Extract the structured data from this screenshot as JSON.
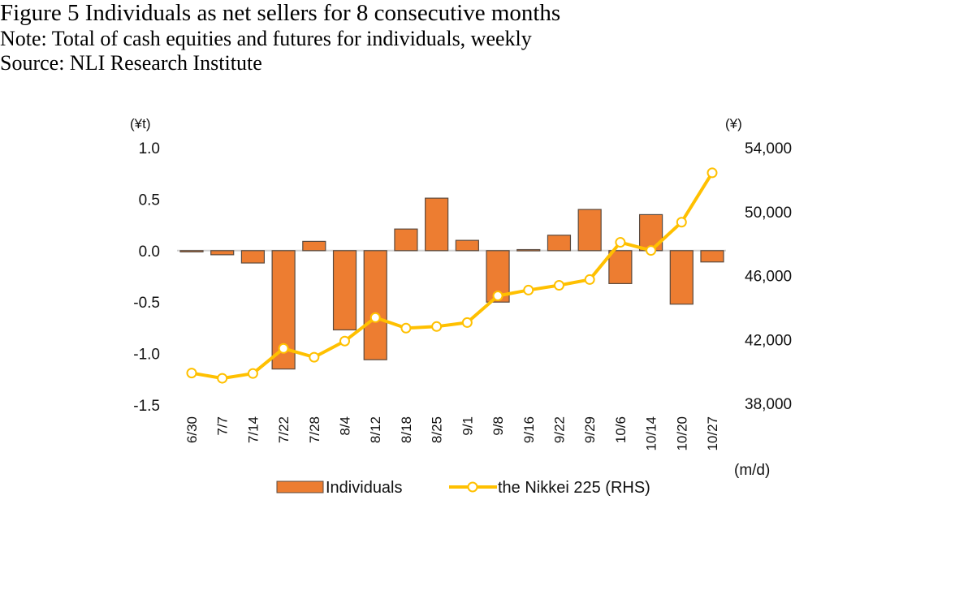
{
  "title": "Figure 5 Individuals as net sellers for 8 consecutive months",
  "note": "Note: Total of cash equities and futures for individuals, weekly",
  "source": "Source: NLI Research Institute",
  "chart_data": {
    "type": "bar+line",
    "title": "",
    "categories": [
      "6/30",
      "7/7",
      "7/14",
      "7/22",
      "7/28",
      "8/4",
      "8/12",
      "8/18",
      "8/25",
      "9/1",
      "9/8",
      "9/16",
      "9/22",
      "9/29",
      "10/6",
      "10/14",
      "10/20",
      "10/27"
    ],
    "xlabel": "(m/d)",
    "ylabel_left": "(¥t)",
    "ylabel_right": "(¥)",
    "ylim_left": [
      -1.5,
      1.0
    ],
    "ylim_right": [
      38000,
      54000
    ],
    "left_ticks": [
      "1.0",
      "0.5",
      "0.0",
      "-0.5",
      "-1.0",
      "-1.5"
    ],
    "right_ticks": [
      "54,000",
      "50,000",
      "46,000",
      "42,000",
      "38,000"
    ],
    "grid": false,
    "legend_position": "bottom",
    "colors": {
      "bar": "#ED7D31",
      "bar_border": "#5B4A3E",
      "line": "#FFC000",
      "zero_line": "#D0D0D0"
    },
    "series": [
      {
        "name": "Individuals",
        "type": "bar",
        "axis": "left",
        "values": [
          -0.01,
          -0.04,
          -0.12,
          -1.15,
          0.09,
          -0.77,
          -1.06,
          0.21,
          0.51,
          0.1,
          -0.5,
          0.01,
          0.15,
          0.4,
          -0.32,
          0.35,
          -0.52,
          -0.11
        ]
      },
      {
        "name": "the Nikkei 225 (RHS)",
        "type": "line",
        "axis": "right",
        "values": [
          39900,
          39570,
          39870,
          41440,
          40890,
          41900,
          43370,
          42710,
          42810,
          43060,
          44730,
          45090,
          45390,
          45750,
          48080,
          47570,
          49340,
          52430
        ]
      }
    ]
  }
}
